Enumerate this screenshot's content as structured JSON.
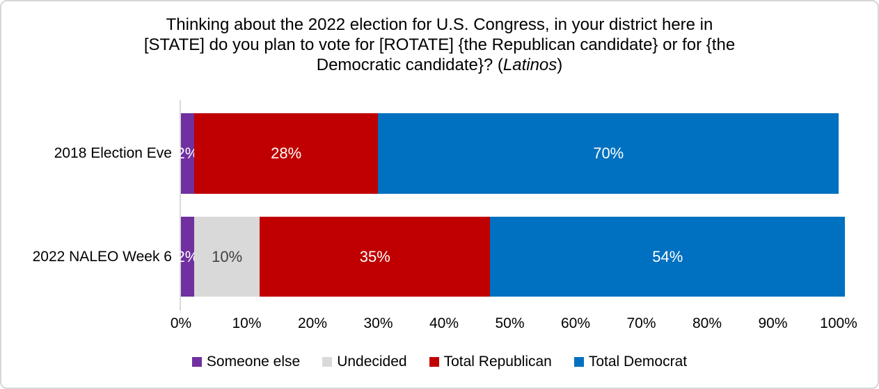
{
  "chart_data": {
    "type": "bar",
    "stacked": true,
    "orientation": "horizontal",
    "title": "Thinking about the 2022 election for U.S. Congress, in your district here in [STATE] do you plan to vote for [ROTATE] {the Republican candidate} or for {the Democratic candidate}? (Latinos)",
    "title_lines": [
      [
        {
          "t": "Thinking about the 2022 election for U.S. Congress, in your district here in"
        }
      ],
      [
        {
          "t": "[STATE] do you plan to vote for [ROTATE] {the Republican candidate} or for {the"
        }
      ],
      [
        {
          "t": "Democratic candidate}? ("
        },
        {
          "t": "Latinos",
          "italic": true
        },
        {
          "t": ")"
        }
      ]
    ],
    "categories": [
      "2018 Election Eve",
      "2022 NALEO Week 6"
    ],
    "series": [
      {
        "name": "Someone else",
        "color": "#7030A0",
        "label_color": "#FFFFFF",
        "values": [
          2,
          2
        ],
        "labels": [
          "2%",
          "2%"
        ]
      },
      {
        "name": "Undecided",
        "color": "#D9D9D9",
        "label_color": "#404040",
        "values": [
          0,
          10
        ],
        "labels": [
          "",
          "10%"
        ]
      },
      {
        "name": "Total Republican",
        "color": "#C00000",
        "label_color": "#FFFFFF",
        "values": [
          28,
          35
        ],
        "labels": [
          "28%",
          "35%"
        ]
      },
      {
        "name": "Total Democrat",
        "color": "#0070C0",
        "label_color": "#FFFFFF",
        "values": [
          70,
          54
        ],
        "labels": [
          "70%",
          "54%"
        ]
      }
    ],
    "x_axis": {
      "min": 0,
      "max": 100,
      "tick_labels": [
        "0%",
        "10%",
        "20%",
        "30%",
        "40%",
        "50%",
        "60%",
        "70%",
        "80%",
        "90%",
        "100%"
      ]
    },
    "legend": {
      "position": "bottom",
      "entries": [
        "Someone else",
        "Undecided",
        "Total Republican",
        "Total Democrat"
      ]
    },
    "grid": false,
    "axis_line_color": "#D9D9D9",
    "text_color": "#000000",
    "background_color": "#FFFFFF"
  }
}
